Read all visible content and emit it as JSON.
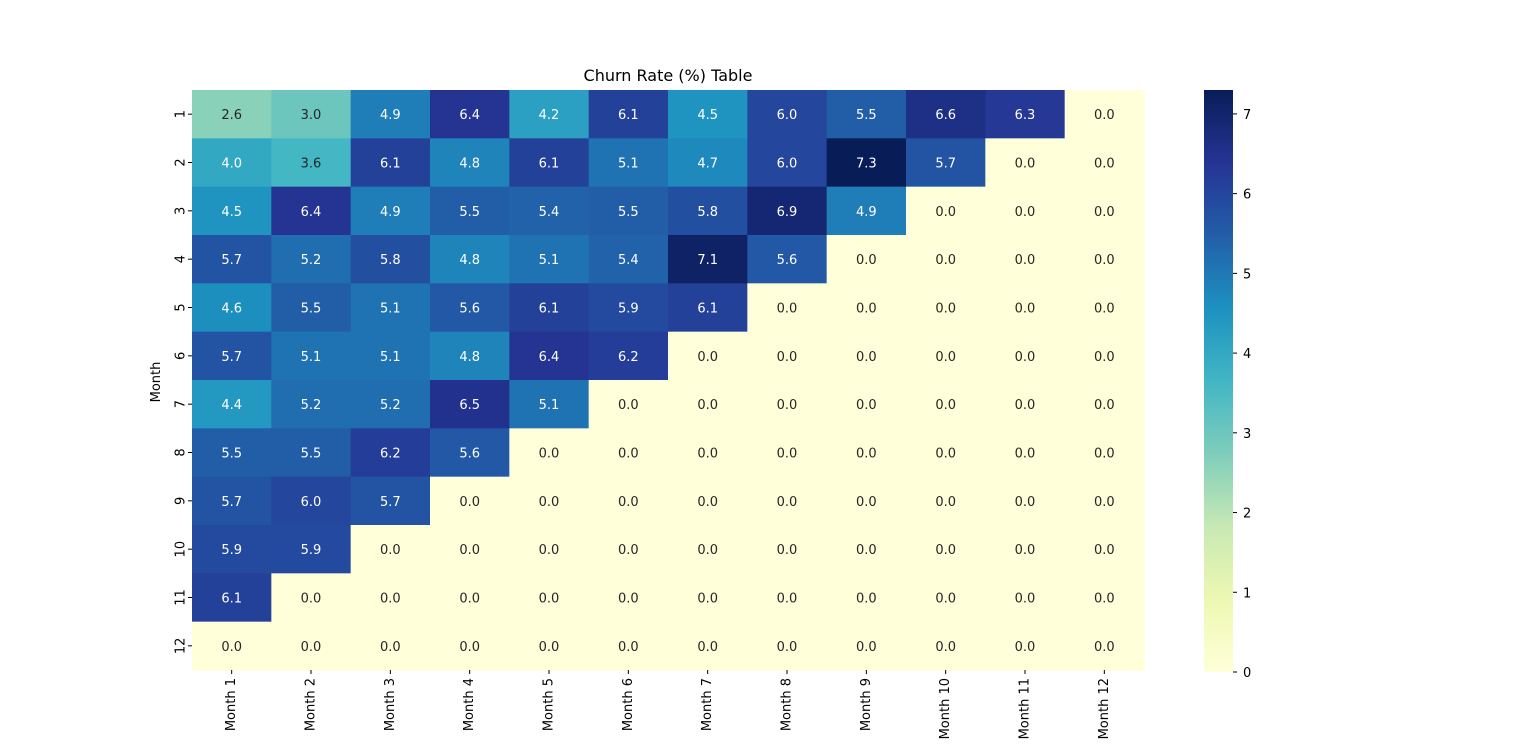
{
  "chart_data": {
    "type": "heatmap",
    "title": "Churn Rate (%) Table",
    "xlabel": "",
    "ylabel": "Month",
    "x_categories": [
      "Month 1",
      "Month 2",
      "Month 3",
      "Month 4",
      "Month 5",
      "Month 6",
      "Month 7",
      "Month 8",
      "Month 9",
      "Month 10",
      "Month 11",
      "Month 12"
    ],
    "y_categories": [
      "1",
      "2",
      "3",
      "4",
      "5",
      "6",
      "7",
      "8",
      "9",
      "10",
      "11",
      "12"
    ],
    "values": [
      [
        2.6,
        3.0,
        4.9,
        6.4,
        4.2,
        6.1,
        4.5,
        6.0,
        5.5,
        6.6,
        6.3,
        0.0
      ],
      [
        4.0,
        3.6,
        6.1,
        4.8,
        6.1,
        5.1,
        4.7,
        6.0,
        7.3,
        5.7,
        0.0,
        0.0
      ],
      [
        4.5,
        6.4,
        4.9,
        5.5,
        5.4,
        5.5,
        5.8,
        6.9,
        4.9,
        0.0,
        0.0,
        0.0
      ],
      [
        5.7,
        5.2,
        5.8,
        4.8,
        5.1,
        5.4,
        7.1,
        5.6,
        0.0,
        0.0,
        0.0,
        0.0
      ],
      [
        4.6,
        5.5,
        5.1,
        5.6,
        6.1,
        5.9,
        6.1,
        0.0,
        0.0,
        0.0,
        0.0,
        0.0
      ],
      [
        5.7,
        5.1,
        5.1,
        4.8,
        6.4,
        6.2,
        0.0,
        0.0,
        0.0,
        0.0,
        0.0,
        0.0
      ],
      [
        4.4,
        5.2,
        5.2,
        6.5,
        5.1,
        0.0,
        0.0,
        0.0,
        0.0,
        0.0,
        0.0,
        0.0
      ],
      [
        5.5,
        5.5,
        6.2,
        5.6,
        0.0,
        0.0,
        0.0,
        0.0,
        0.0,
        0.0,
        0.0,
        0.0
      ],
      [
        5.7,
        6.0,
        5.7,
        0.0,
        0.0,
        0.0,
        0.0,
        0.0,
        0.0,
        0.0,
        0.0,
        0.0
      ],
      [
        5.9,
        5.9,
        0.0,
        0.0,
        0.0,
        0.0,
        0.0,
        0.0,
        0.0,
        0.0,
        0.0,
        0.0
      ],
      [
        6.1,
        0.0,
        0.0,
        0.0,
        0.0,
        0.0,
        0.0,
        0.0,
        0.0,
        0.0,
        0.0,
        0.0
      ],
      [
        0.0,
        0.0,
        0.0,
        0.0,
        0.0,
        0.0,
        0.0,
        0.0,
        0.0,
        0.0,
        0.0,
        0.0
      ]
    ],
    "value_format": "0.0",
    "colormap": "YlGnBu",
    "colormap_stops": [
      "#ffffd9",
      "#edf8b1",
      "#c7e9b4",
      "#7fcdbb",
      "#41b6c4",
      "#1d91c0",
      "#225ea8",
      "#253494",
      "#081d58"
    ],
    "vmin": 0,
    "vmax": 7.3,
    "colorbar_ticks": [
      0,
      1,
      2,
      3,
      4,
      5,
      6,
      7
    ],
    "grid": false,
    "legend": "colorbar-right"
  }
}
